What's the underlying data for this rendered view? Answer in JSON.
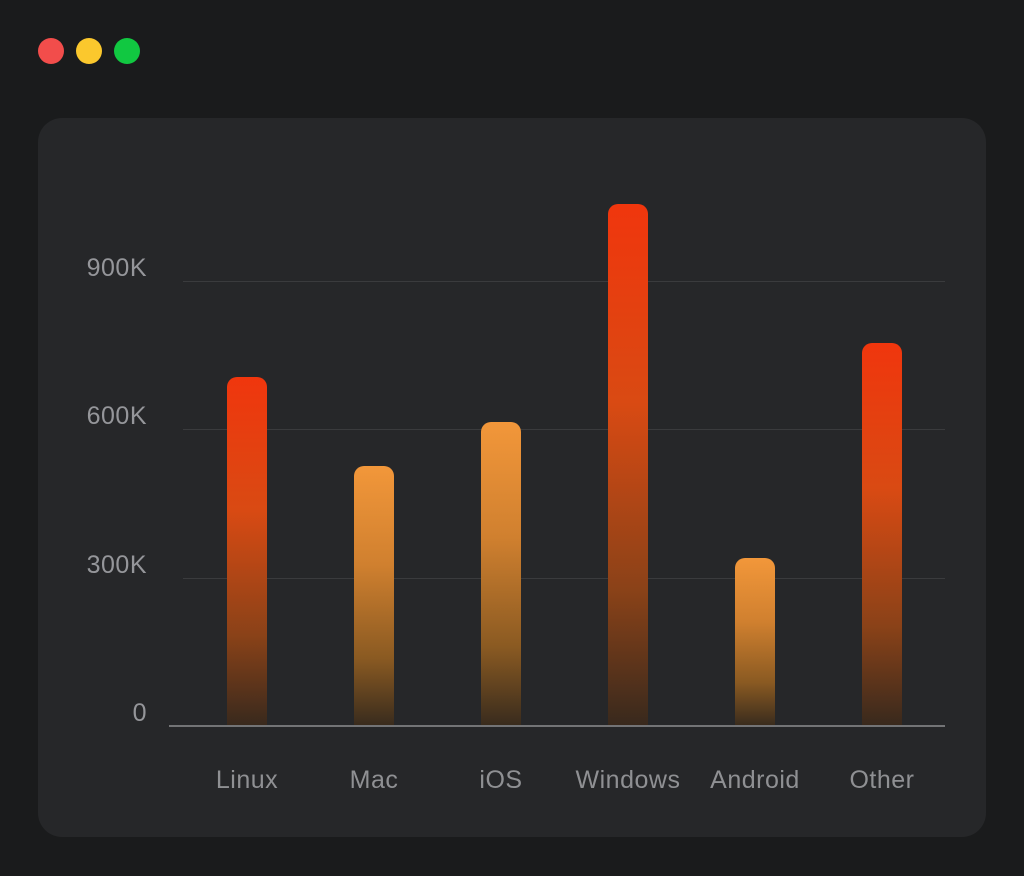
{
  "window": {
    "traffic_lights": [
      {
        "name": "close",
        "color": "#f24d4b"
      },
      {
        "name": "minimize",
        "color": "#fbc82d"
      },
      {
        "name": "maximize",
        "color": "#11c841"
      }
    ]
  },
  "colors": {
    "page_bg": "#1a1b1c",
    "panel_bg": "#262729",
    "grid_line": "#3a3b3d",
    "axis_line": "#737476",
    "tick_label_text": "#95969a",
    "category_label_text": "#8f9093",
    "bar_red_top": "#f0360d",
    "bar_orange_top": "#f2973a"
  },
  "chart_data": {
    "type": "bar",
    "title": "",
    "xlabel": "",
    "ylabel": "",
    "categories": [
      "Linux",
      "Mac",
      "iOS",
      "Windows",
      "Android",
      "Other"
    ],
    "values": [
      705000,
      525000,
      615000,
      1055000,
      340000,
      775000
    ],
    "bar_color_names": [
      "red",
      "orange",
      "orange",
      "red",
      "orange",
      "red"
    ],
    "y_ticks": [
      {
        "label": "900K",
        "value": 900000
      },
      {
        "label": "600K",
        "value": 600000
      },
      {
        "label": "300K",
        "value": 300000
      },
      {
        "label": "0",
        "value": 0
      }
    ],
    "ylim": [
      0,
      1100000
    ],
    "grid": "horizontal-only",
    "legend": "none",
    "gradient_bars": true
  }
}
